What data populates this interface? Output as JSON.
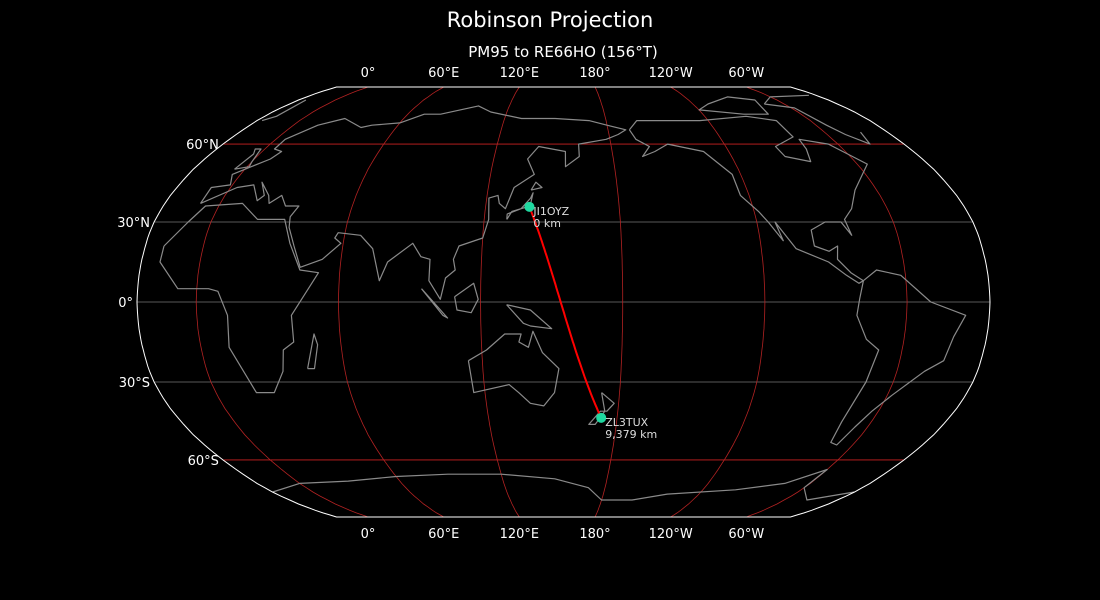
{
  "title": "Robinson Projection",
  "subtitle": "PM95 to RE66HO (156°T)",
  "projection": {
    "type": "robinson",
    "central_longitude": 155
  },
  "lon_ticks": [
    {
      "lon": 0,
      "label": "0°"
    },
    {
      "lon": 60,
      "label": "60°E"
    },
    {
      "lon": 120,
      "label": "120°E"
    },
    {
      "lon": 180,
      "label": "180°"
    },
    {
      "lon": -120,
      "label": "120°W"
    },
    {
      "lon": -60,
      "label": "60°W"
    }
  ],
  "lat_ticks": [
    {
      "lat": 60,
      "label": "60°N"
    },
    {
      "lat": 30,
      "label": "30°N"
    },
    {
      "lat": 0,
      "label": "0°"
    },
    {
      "lat": -30,
      "label": "30°S"
    },
    {
      "lat": -60,
      "label": "60°S"
    }
  ],
  "stations": [
    {
      "call": "JI1OYZ",
      "distance": "0 km",
      "lat": 35.7,
      "lon": 139.7
    },
    {
      "call": "ZL3TUX",
      "distance": "9,379 km",
      "lat": -43.5,
      "lon": 172.6
    }
  ],
  "colors": {
    "background": "#000000",
    "coastline": "#8a8a8a",
    "meridian": "#b22222",
    "parallel_major": "#cc2222",
    "parallel_minor": "#777777",
    "path": "#ff0000",
    "marker": "#1fd8a0",
    "outline": "#ffffff"
  }
}
